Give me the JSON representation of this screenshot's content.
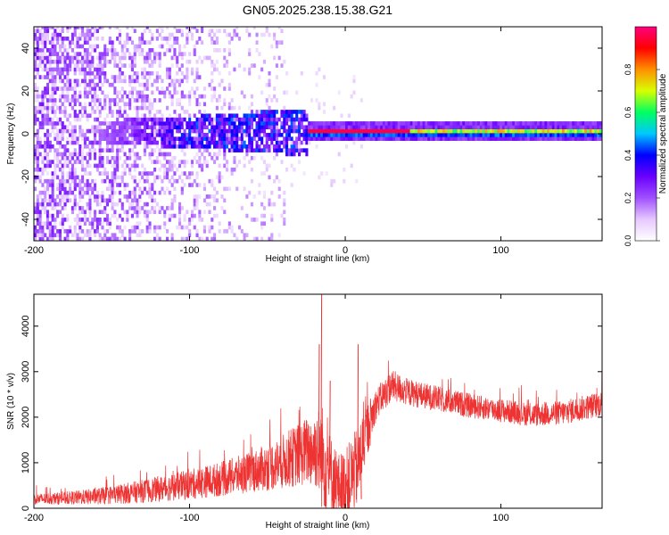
{
  "figure_title": "GN05.2025.238.15.38.G21",
  "colors": {
    "snr_line": "#ee3333",
    "frame": "#000000",
    "colorbar_stops": [
      "#ffffff",
      "#e6c8ff",
      "#a050ff",
      "#6a00ff",
      "#0000ff",
      "#00c8ff",
      "#00ff60",
      "#d8ff00",
      "#ff9000",
      "#ff0000",
      "#ff0080"
    ]
  },
  "chart_data": [
    {
      "type": "heatmap",
      "title": "GN05.2025.238.15.38.G21",
      "xlabel": "Height of straight line (km)",
      "ylabel": "Frequency (Hz)",
      "xlim": [
        -200,
        165
      ],
      "ylim": [
        -50,
        50
      ],
      "xticks": [
        -200,
        -100,
        0,
        100
      ],
      "yticks": [
        -40,
        -20,
        0,
        20,
        40
      ],
      "colorbar": {
        "label": "Normalized spectral amplitude",
        "range": [
          0.0,
          1.0
        ],
        "ticks": [
          "0.0",
          "0.2",
          "0.4",
          "0.6",
          "0.8"
        ]
      },
      "description_values": {
        "noise_region_x": [
          -200,
          -60
        ],
        "peak_frequency_hz": 0,
        "high_amplitude_x": [
          -120,
          160
        ]
      }
    },
    {
      "type": "line",
      "xlabel": "Height of straight line (km)",
      "ylabel": "SNR (10 * v/v)",
      "xlim": [
        -200,
        165
      ],
      "ylim": [
        0,
        4700
      ],
      "xticks": [
        -200,
        -100,
        0,
        100
      ],
      "yticks": [
        0,
        1000,
        2000,
        3000,
        4000
      ],
      "envelope": {
        "x": [
          -200,
          -180,
          -160,
          -140,
          -120,
          -100,
          -80,
          -60,
          -45,
          -35,
          -25,
          -18,
          -15,
          -10,
          -5,
          0,
          8,
          12,
          20,
          30,
          40,
          60,
          80,
          100,
          120,
          140,
          165
        ],
        "mean": [
          200,
          220,
          260,
          330,
          420,
          520,
          640,
          800,
          950,
          1100,
          1250,
          1300,
          1150,
          800,
          500,
          500,
          900,
          1500,
          2300,
          2700,
          2550,
          2400,
          2250,
          2150,
          2050,
          2100,
          2300
        ],
        "amp": [
          120,
          140,
          180,
          230,
          280,
          330,
          380,
          450,
          550,
          650,
          750,
          900,
          1200,
          900,
          700,
          800,
          900,
          700,
          350,
          350,
          300,
          280,
          270,
          260,
          260,
          270,
          280
        ]
      },
      "spikes": [
        {
          "x": -15.5,
          "y": 4700
        },
        {
          "x": -17,
          "y": 3600
        },
        {
          "x": 8,
          "y": 3600
        },
        {
          "x": -10,
          "y": 2800
        },
        {
          "x": 10,
          "y": 200
        }
      ]
    }
  ]
}
